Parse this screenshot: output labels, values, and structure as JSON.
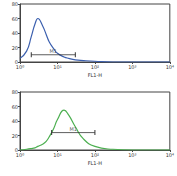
{
  "chart_data": [
    {
      "type": "line",
      "color": "#3b5fae",
      "log": "x",
      "xlabel": "FL1-H",
      "x": [
        1,
        1.5,
        2,
        2.5,
        3,
        4,
        5,
        6,
        8,
        10,
        15,
        20,
        30,
        50,
        100,
        300,
        1000,
        10000
      ],
      "values": [
        5,
        15,
        35,
        52,
        60,
        50,
        38,
        28,
        18,
        12,
        7,
        5,
        3,
        2,
        1,
        0,
        0,
        0
      ],
      "xlim": [
        1,
        10000
      ],
      "xticks": [
        {
          "value": 1,
          "label": "10⁰"
        },
        {
          "value": 10,
          "label": "10¹"
        },
        {
          "value": 100,
          "label": "10²"
        },
        {
          "value": 1000,
          "label": "10³"
        },
        {
          "value": 10000,
          "label": "10⁴"
        }
      ],
      "ylim": [
        0,
        80
      ],
      "yticks": [
        0,
        20,
        40,
        60,
        80
      ],
      "annotations": [
        {
          "text": "M1",
          "x": [
            2,
            30
          ],
          "y": 10
        }
      ]
    },
    {
      "type": "line",
      "color": "#4caf50",
      "log": "x",
      "xlabel": "FL1-H",
      "x": [
        1,
        1.5,
        2,
        2.5,
        3,
        4,
        5,
        6,
        8,
        10,
        15,
        20,
        30,
        50,
        100,
        300,
        1000,
        10000
      ],
      "values": [
        0,
        1,
        2,
        3,
        5,
        8,
        12,
        18,
        30,
        42,
        55,
        48,
        32,
        15,
        5,
        1,
        0,
        0
      ],
      "xlim": [
        1,
        10000
      ],
      "xticks": [
        {
          "value": 1,
          "label": "10⁰"
        },
        {
          "value": 10,
          "label": "10¹"
        },
        {
          "value": 100,
          "label": "10²"
        },
        {
          "value": 1000,
          "label": "10³"
        },
        {
          "value": 10000,
          "label": "10⁴"
        }
      ],
      "ylim": [
        0,
        80
      ],
      "yticks": [
        0,
        20,
        40,
        60,
        80
      ],
      "annotations": [
        {
          "text": "M1",
          "x": [
            7,
            100
          ],
          "y": 24
        }
      ]
    }
  ]
}
